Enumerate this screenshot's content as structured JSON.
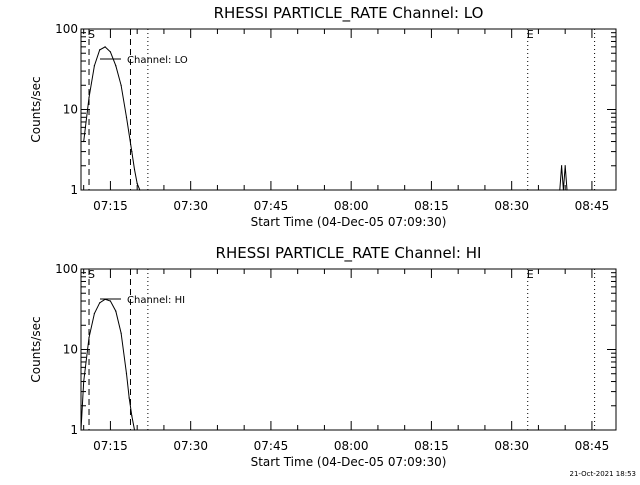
{
  "chart_data": [
    {
      "type": "line",
      "title": "RHESSI PARTICLE_RATE Channel: LO",
      "xlabel": "Start Time (04-Dec-05 07:09:30)",
      "ylabel": "Counts/sec",
      "x_ticks": [
        "07:15",
        "07:30",
        "07:45",
        "08:00",
        "08:15",
        "08:30",
        "08:45"
      ],
      "y_ticks": [
        "1",
        "10",
        "100"
      ],
      "yscale": "log",
      "xlim": [
        "07:09:30",
        "08:49:30"
      ],
      "ylim": [
        1,
        100
      ],
      "legend": "Channel: LO",
      "series": [
        {
          "name": "Channel: LO",
          "x": [
            "07:10:00",
            "07:11:00",
            "07:12:00",
            "07:13:00",
            "07:14:00",
            "07:15:00",
            "07:16:00",
            "07:17:00",
            "07:18:00",
            "07:19:00",
            "07:19:30",
            "07:20:00",
            "07:20:30",
            "08:39:00",
            "08:39:20",
            "08:39:40",
            "08:40:00",
            "08:40:20"
          ],
          "values": [
            4,
            14,
            35,
            55,
            60,
            52,
            35,
            20,
            8,
            3,
            1.8,
            1.2,
            1,
            1,
            2,
            1,
            2,
            1
          ]
        }
      ],
      "markers": [
        {
          "label": "S",
          "time": "07:11:00",
          "style": "dashed"
        },
        {
          "label": "",
          "time": "07:18:45",
          "style": "dashed"
        },
        {
          "label": "E",
          "time": "08:33:00",
          "style": "dotted"
        },
        {
          "label": "",
          "time": "07:22:00",
          "style": "dotted"
        },
        {
          "label": "",
          "time": "08:45:30",
          "style": "dotted"
        }
      ],
      "timestamp": ""
    },
    {
      "type": "line",
      "title": "RHESSI PARTICLE_RATE Channel: HI",
      "xlabel": "Start Time (04-Dec-05 07:09:30)",
      "ylabel": "Counts/sec",
      "x_ticks": [
        "07:15",
        "07:30",
        "07:45",
        "08:00",
        "08:15",
        "08:30",
        "08:45"
      ],
      "y_ticks": [
        "1",
        "10",
        "100"
      ],
      "yscale": "log",
      "xlim": [
        "07:09:30",
        "08:49:30"
      ],
      "ylim": [
        1,
        100
      ],
      "legend": "Channel: HI",
      "series": [
        {
          "name": "Channel: HI",
          "x": [
            "07:09:30",
            "07:10:00",
            "07:11:00",
            "07:12:00",
            "07:13:00",
            "07:14:00",
            "07:15:00",
            "07:16:00",
            "07:17:00",
            "07:18:00",
            "07:18:30",
            "07:19:00",
            "07:19:30"
          ],
          "values": [
            1,
            4,
            14,
            28,
            38,
            42,
            40,
            30,
            16,
            5,
            2.5,
            1.5,
            1
          ]
        }
      ],
      "markers": [
        {
          "label": "S",
          "time": "07:11:00",
          "style": "dashed"
        },
        {
          "label": "",
          "time": "07:18:45",
          "style": "dashed"
        },
        {
          "label": "E",
          "time": "08:33:00",
          "style": "dotted"
        },
        {
          "label": "",
          "time": "07:22:00",
          "style": "dotted"
        },
        {
          "label": "",
          "time": "08:45:30",
          "style": "dotted"
        }
      ],
      "timestamp": "21-Oct-2021 18:53"
    }
  ]
}
